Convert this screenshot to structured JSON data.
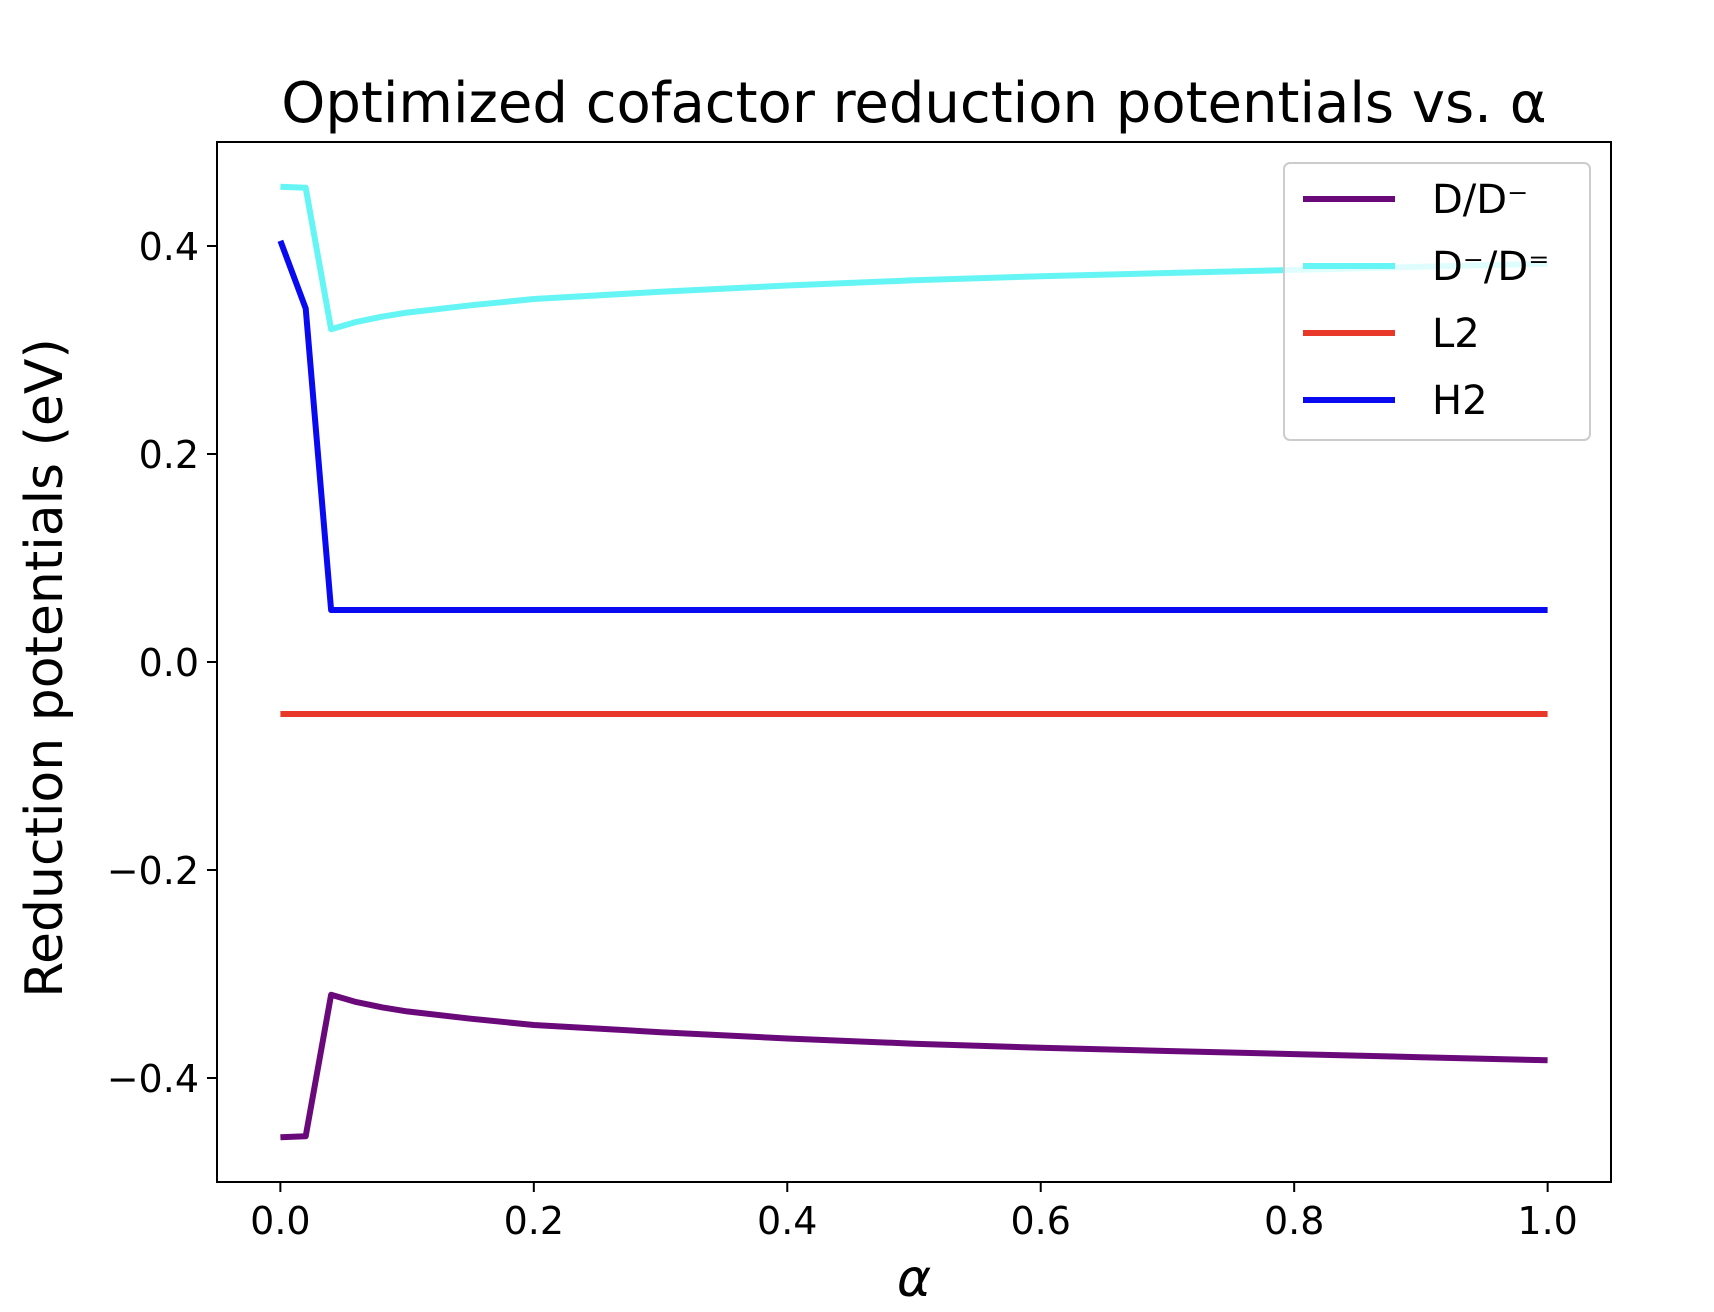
{
  "chart_data": {
    "type": "line",
    "title": "Optimized cofactor reduction potentials vs. α",
    "xlabel": "α",
    "ylabel": "Reduction potentials (eV)",
    "xlim": [
      -0.05,
      1.05
    ],
    "ylim": [
      -0.5,
      0.5
    ],
    "xticks": [
      0.0,
      0.2,
      0.4,
      0.6,
      0.8,
      1.0
    ],
    "xtick_labels": [
      "0.0",
      "0.2",
      "0.4",
      "0.6",
      "0.8",
      "1.0"
    ],
    "yticks": [
      -0.4,
      -0.2,
      0.0,
      0.2,
      0.4
    ],
    "ytick_labels": [
      "−0.4",
      "−0.2",
      "0.0",
      "0.2",
      "0.4"
    ],
    "grid": false,
    "legend_position": "top-right",
    "series": [
      {
        "name": "D/D⁻",
        "color": "#6a0a7a",
        "x": [
          0.0,
          0.02,
          0.04,
          0.06,
          0.08,
          0.1,
          0.15,
          0.2,
          0.3,
          0.4,
          0.5,
          0.6,
          0.7,
          0.8,
          0.9,
          1.0
        ],
        "y": [
          -0.457,
          -0.456,
          -0.32,
          -0.327,
          -0.332,
          -0.336,
          -0.343,
          -0.349,
          -0.356,
          -0.362,
          -0.367,
          -0.371,
          -0.374,
          -0.377,
          -0.38,
          -0.383
        ]
      },
      {
        "name": "D⁻/D⁼",
        "color": "#66f5f5",
        "x": [
          0.0,
          0.02,
          0.04,
          0.06,
          0.08,
          0.1,
          0.15,
          0.2,
          0.3,
          0.4,
          0.5,
          0.6,
          0.7,
          0.8,
          0.9,
          1.0
        ],
        "y": [
          0.457,
          0.456,
          0.32,
          0.327,
          0.332,
          0.336,
          0.343,
          0.349,
          0.356,
          0.362,
          0.367,
          0.371,
          0.374,
          0.377,
          0.38,
          0.383
        ]
      },
      {
        "name": "L2",
        "color": "#e8382a",
        "x": [
          0.0,
          1.0
        ],
        "y": [
          -0.05,
          -0.05
        ]
      },
      {
        "name": "H2",
        "color": "#0a0af0",
        "x": [
          0.0,
          0.02,
          0.04,
          0.06,
          1.0
        ],
        "y": [
          0.405,
          0.34,
          0.05,
          0.05,
          0.05
        ]
      }
    ]
  }
}
